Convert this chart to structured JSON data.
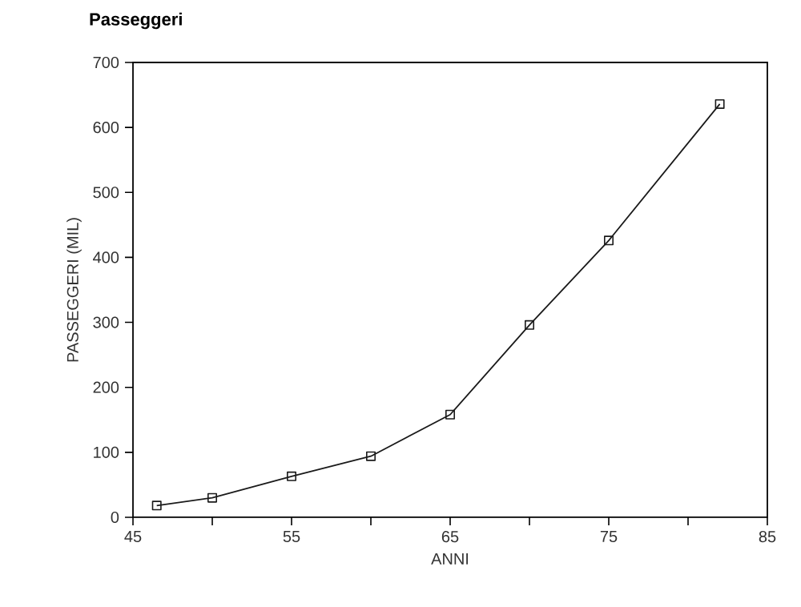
{
  "chart_data": {
    "type": "line",
    "title": "Passeggeri",
    "xlabel": "ANNI",
    "ylabel": "PASSEGGERI (MIL)",
    "x": [
      46.5,
      50,
      55,
      60,
      65,
      70,
      75,
      82
    ],
    "series": [
      {
        "color": "#1a1a1a",
        "values": [
          18,
          30,
          63,
          94,
          158,
          296,
          426,
          636
        ]
      }
    ],
    "xlim": [
      45,
      85
    ],
    "ylim": [
      0,
      700
    ],
    "xticks": [
      45,
      {
        "value": 50,
        "label": null
      },
      55,
      {
        "value": 60,
        "label": null
      },
      65,
      {
        "value": 70,
        "label": null
      },
      75,
      {
        "value": 80,
        "label": null
      },
      85
    ],
    "yticks": [
      0,
      100,
      200,
      300,
      400,
      500,
      600,
      700
    ],
    "marker": "square",
    "line_style": "solid",
    "grid": false
  }
}
